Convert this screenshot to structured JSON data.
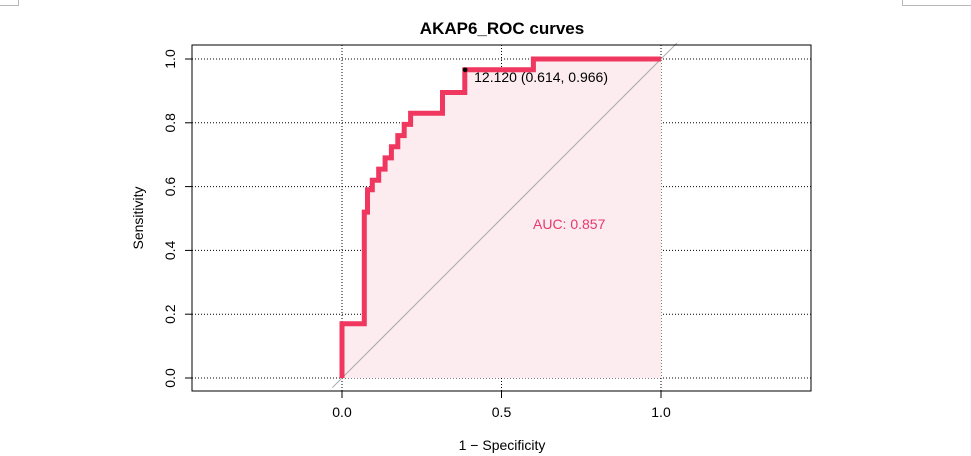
{
  "chart_data": {
    "type": "line",
    "title": "AKAP6_ROC curves",
    "xlabel": "1 − Specificity",
    "ylabel": "Sensitivity",
    "xlim": [
      0,
      1
    ],
    "ylim": [
      0,
      1
    ],
    "x_ticks": [
      "0.0",
      "0.5",
      "1.0"
    ],
    "y_ticks": [
      "0.0",
      "0.2",
      "0.4",
      "0.6",
      "0.8",
      "1.0"
    ],
    "grid": true,
    "series": [
      {
        "color": "#f0375f",
        "x": [
          0,
          0,
          0.07,
          0.07,
          0.08,
          0.08,
          0.095,
          0.095,
          0.115,
          0.115,
          0.135,
          0.135,
          0.155,
          0.155,
          0.175,
          0.175,
          0.195,
          0.195,
          0.215,
          0.215,
          0.235,
          0.235,
          0.255,
          0.255,
          0.315,
          0.315,
          0.385,
          0.385,
          0.6,
          0.6,
          1.0
        ],
        "y": [
          0,
          0.17,
          0.17,
          0.52,
          0.52,
          0.59,
          0.59,
          0.62,
          0.62,
          0.655,
          0.655,
          0.69,
          0.69,
          0.725,
          0.725,
          0.76,
          0.76,
          0.795,
          0.795,
          0.83,
          0.83,
          0.83,
          0.83,
          0.83,
          0.83,
          0.895,
          0.895,
          0.966,
          0.966,
          1.0,
          1.0
        ]
      }
    ],
    "auc_text": "AUC: 0.857",
    "auc_color": "#e8386c",
    "best_point": {
      "x": 0.386,
      "y": 0.966,
      "label": "12.120 (0.614, 0.966)"
    },
    "fill_color": "#fcecef",
    "diagonal_color": "#a9a9a9"
  }
}
